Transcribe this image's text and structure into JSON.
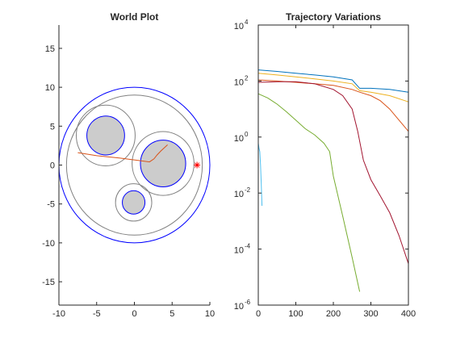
{
  "chart_data": [
    {
      "type": "scatter",
      "title": "World Plot",
      "xlabel": "",
      "ylabel": "",
      "xlim": [
        -10,
        10
      ],
      "ylim": [
        -18,
        18
      ],
      "xticks": [
        -10,
        -5,
        0,
        5,
        10
      ],
      "yticks": [
        -15,
        -10,
        -5,
        0,
        5,
        10,
        15
      ],
      "x_tick_labels": [
        "-10",
        "-5",
        "0",
        "5",
        "10"
      ],
      "y_tick_labels": [
        "-15",
        "-10",
        "-5",
        "0",
        "5",
        "10",
        "15"
      ],
      "colors": {
        "boundary": "#0000ff",
        "obstacle_fill": "#cccccc",
        "obstacle_edge": "#0000ff",
        "guard_circle": "#808080",
        "trajectory": "#d95319",
        "goal": "#ff0000"
      },
      "boundary_circle": {
        "cx": 0,
        "cy": 0,
        "r": 10
      },
      "outer_guard_circle": {
        "cx": 0,
        "cy": 0,
        "r": 9
      },
      "obstacles": [
        {
          "cx": -3.8,
          "cy": 3.8,
          "r": 2.5,
          "guard_r": 3.9
        },
        {
          "cx": 3.8,
          "cy": 0.2,
          "r": 3.0,
          "guard_r": 4.1
        },
        {
          "cx": -0.1,
          "cy": -4.8,
          "r": 1.5,
          "guard_r": 2.4
        }
      ],
      "trajectory": [
        [
          -7.5,
          1.6
        ],
        [
          -5.0,
          1.2
        ],
        [
          -2.0,
          0.9
        ],
        [
          0.5,
          0.6
        ],
        [
          2.0,
          0.4
        ],
        [
          2.6,
          0.8
        ],
        [
          3.0,
          1.3
        ],
        [
          3.5,
          1.8
        ],
        [
          4.4,
          2.6
        ]
      ],
      "goal_marker": {
        "x": 8.3,
        "y": 0.0,
        "symbol": "*"
      }
    },
    {
      "type": "line",
      "title": "Trajectory Variations",
      "xlabel": "",
      "ylabel": "",
      "xlim": [
        0,
        400
      ],
      "ylim": [
        1e-06,
        10000.0
      ],
      "yscale": "log",
      "xticks": [
        0,
        100,
        200,
        300,
        400
      ],
      "x_tick_labels": [
        "0",
        "100",
        "200",
        "300",
        "400"
      ],
      "y_tick_exponents": [
        "-6",
        "-4",
        "-2",
        "0",
        "2",
        "4"
      ],
      "y_tick_base": "10",
      "series": [
        {
          "color": "#0072bd",
          "x": [
            0,
            50,
            100,
            150,
            200,
            250,
            270,
            300,
            350,
            400
          ],
          "y": [
            250,
            220,
            190,
            165,
            140,
            110,
            55,
            55,
            50,
            40
          ]
        },
        {
          "color": "#edb120",
          "x": [
            0,
            50,
            100,
            150,
            200,
            250,
            270,
            300,
            350,
            400
          ],
          "y": [
            190,
            165,
            140,
            120,
            100,
            80,
            45,
            40,
            30,
            18
          ]
        },
        {
          "color": "#d95319",
          "x": [
            0,
            50,
            100,
            150,
            200,
            250,
            270,
            300,
            325,
            350,
            375,
            400
          ],
          "y": [
            110,
            100,
            90,
            80,
            70,
            50,
            40,
            30,
            20,
            10,
            4,
            1.6
          ]
        },
        {
          "color": "#a2142f",
          "x": [
            0,
            50,
            100,
            150,
            200,
            225,
            250,
            265,
            280,
            300,
            325,
            350,
            375,
            400
          ],
          "y": [
            90,
            95,
            95,
            80,
            50,
            30,
            10,
            1.6,
            0.15,
            0.03,
            0.008,
            0.002,
            0.0003,
            3e-05
          ]
        },
        {
          "color": "#77ac30",
          "x": [
            0,
            25,
            50,
            75,
            100,
            125,
            150,
            175,
            190,
            200,
            225,
            250,
            270
          ],
          "y": [
            35,
            25,
            15,
            8,
            4,
            2.0,
            1.2,
            0.6,
            0.3,
            0.04,
            0.0015,
            5e-05,
            3e-06
          ]
        },
        {
          "color": "#4dbeee",
          "x": [
            0,
            2,
            4,
            6,
            8,
            10
          ],
          "y": [
            0.6,
            0.4,
            0.3,
            0.1,
            0.02,
            0.0035
          ]
        }
      ]
    }
  ]
}
